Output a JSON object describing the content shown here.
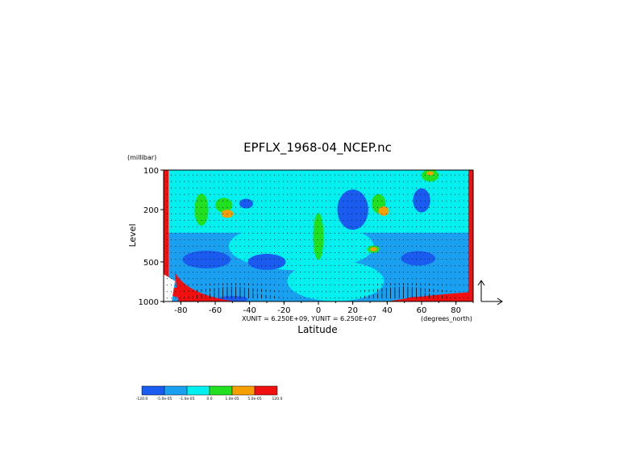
{
  "chart_data": {
    "type": "heatmap",
    "title": "EPFLX_1968-04_NCEP.nc",
    "xlabel": "Latitude",
    "ylabel": "Level",
    "y_unit_label": "(millibar)",
    "x_unit_label": "(degrees_north)",
    "scale_note": "XUNIT = 6.250E+09, YUNIT = 6.250E+07",
    "xlim": [
      -90,
      90
    ],
    "ylim": [
      1000,
      100
    ],
    "y_scale": "log",
    "x_ticks": [
      -80,
      -60,
      -40,
      -20,
      0,
      20,
      40,
      60,
      80
    ],
    "x_tick_labels": [
      "-80",
      "-60",
      "-40",
      "-20",
      "0",
      "20",
      "40",
      "60",
      "80"
    ],
    "y_ticks": [
      100,
      200,
      500,
      1000
    ],
    "y_tick_labels": [
      "100",
      "200",
      "500",
      "1000"
    ],
    "vectors": true,
    "colorbar": {
      "colors": [
        "#1a5cf0",
        "#1aa0f0",
        "#00f0f0",
        "#20e020",
        "#f5a000",
        "#f01010"
      ],
      "labels": [
        "-120.0",
        "-5.0e-05",
        "-1.0e-05",
        "0.0",
        "1.0e-05",
        "5.0e-05",
        "120.0"
      ]
    },
    "blobs": [
      {
        "lat": 0,
        "p": 320,
        "rx": 6,
        "ry": 58,
        "v": "#20e020"
      },
      {
        "lat": 0,
        "p": 320,
        "rx": 2,
        "ry": 38,
        "v": "#20e020"
      },
      {
        "lat": -65,
        "p": 480,
        "rx": 28,
        "ry": 22,
        "v": "#1a5cf0"
      },
      {
        "lat": -30,
        "p": 500,
        "rx": 22,
        "ry": 20,
        "v": "#1a5cf0"
      },
      {
        "lat": -68,
        "p": 200,
        "rx": 8,
        "ry": 40,
        "v": "#20e020"
      },
      {
        "lat": -55,
        "p": 185,
        "rx": 10,
        "ry": 18,
        "v": "#20e020"
      },
      {
        "lat": -53,
        "p": 215,
        "rx": 7,
        "ry": 10,
        "v": "#f5a000"
      },
      {
        "lat": -42,
        "p": 180,
        "rx": 8,
        "ry": 12,
        "v": "#1a5cf0"
      },
      {
        "lat": 20,
        "p": 200,
        "rx": 18,
        "ry": 50,
        "v": "#1a5cf0"
      },
      {
        "lat": 35,
        "p": 180,
        "rx": 8,
        "ry": 24,
        "v": "#20e020"
      },
      {
        "lat": 38,
        "p": 205,
        "rx": 6,
        "ry": 12,
        "v": "#f5a000"
      },
      {
        "lat": 32,
        "p": 400,
        "rx": 7,
        "ry": 9,
        "v": "#20e020"
      },
      {
        "lat": 32,
        "p": 400,
        "rx": 4,
        "ry": 5,
        "v": "#f5a000"
      },
      {
        "lat": 60,
        "p": 170,
        "rx": 10,
        "ry": 30,
        "v": "#1a5cf0"
      },
      {
        "lat": 65,
        "p": 110,
        "rx": 10,
        "ry": 15,
        "v": "#20e020"
      },
      {
        "lat": 65,
        "p": 106,
        "rx": 4,
        "ry": 5,
        "v": "#f5a000"
      },
      {
        "lat": 58,
        "p": 470,
        "rx": 20,
        "ry": 18,
        "v": "#1a5cf0"
      },
      {
        "lat": -50,
        "p": 960,
        "rx": 18,
        "ry": 8,
        "v": "#1a5cf0"
      },
      {
        "lat": -82,
        "p": 850,
        "rx": 8,
        "ry": 12,
        "v": "#f01010"
      },
      {
        "lat": 58,
        "p": 960,
        "rx": 14,
        "ry": 6,
        "v": "#f01010"
      },
      {
        "lat": 75,
        "p": 930,
        "rx": 10,
        "ry": 8,
        "v": "#f5a000"
      }
    ]
  }
}
